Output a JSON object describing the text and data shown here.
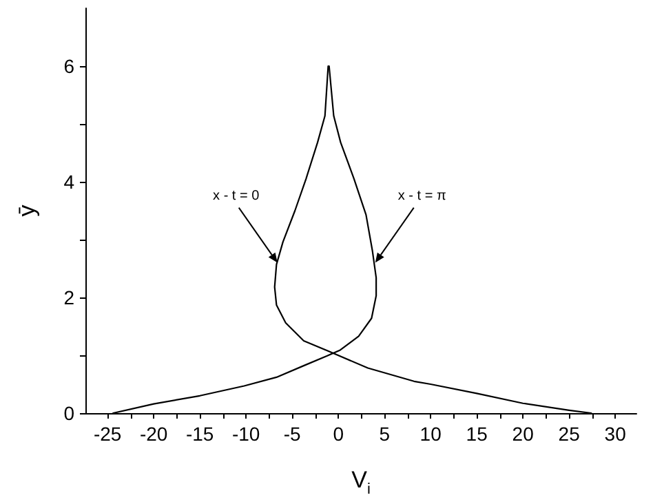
{
  "chart_data": {
    "type": "line",
    "xlabel": "V$_{i}$",
    "ylabel": "ȳ",
    "xlim": [
      -27.4,
      32.3
    ],
    "ylim": [
      0,
      7
    ],
    "xticks": [
      -25,
      {
        "value": -22.5,
        "label": null
      },
      -20,
      {
        "value": -17.5,
        "label": null
      },
      -15,
      {
        "value": -12.5,
        "label": null
      },
      -10,
      {
        "value": -7.5,
        "label": null
      },
      -5,
      {
        "value": -2.5,
        "label": null
      },
      0,
      {
        "value": 2.5,
        "label": null
      },
      5,
      {
        "value": 7.5,
        "label": null
      },
      10,
      {
        "value": 12.5,
        "label": null
      },
      15,
      {
        "value": 17.5,
        "label": null
      },
      20,
      {
        "value": 22.5,
        "label": null
      },
      25,
      {
        "value": 27.5,
        "label": null
      },
      30
    ],
    "yticks": [
      0,
      {
        "value": 1,
        "label": null
      },
      2,
      {
        "value": 3,
        "label": null
      },
      4,
      {
        "value": 5,
        "label": null
      },
      6
    ],
    "grid": false,
    "marker": "none",
    "line_style": "solid",
    "series": [
      {
        "color": "#000000",
        "x": [
          -1.1,
          -1.45,
          -2.25,
          -3.5,
          -4.7,
          -6.0,
          -6.7,
          -6.9,
          -6.7,
          -5.7,
          -3.75,
          -1.2,
          3.2,
          8.2,
          10,
          15,
          20,
          25,
          27.4
        ],
        "values": [
          6,
          5.14,
          4.68,
          4.05,
          3.5,
          2.96,
          2.57,
          2.18,
          1.87,
          1.56,
          1.25,
          1.08,
          0.78,
          0.55,
          0.5,
          0.34,
          0.17,
          0.05,
          0
        ]
      },
      {
        "color": "#000000",
        "x": [
          -1.0,
          -0.5,
          0.25,
          1.7,
          3.0,
          3.7,
          4.1,
          4.1,
          3.6,
          2.2,
          0.2,
          -1.2,
          -3.75,
          -6.7,
          -10.2,
          -15,
          -20,
          -24.4
        ],
        "values": [
          6,
          5.14,
          4.68,
          4.05,
          3.43,
          2.8,
          2.34,
          2.03,
          1.64,
          1.33,
          1.09,
          0.99,
          0.82,
          0.62,
          0.47,
          0.3,
          0.16,
          0
        ]
      }
    ],
    "annotations": [
      {
        "text": "x - t = 0",
        "x": -6.6,
        "y": 2.6
      },
      {
        "text": "x - t = π",
        "x": 4.0,
        "y": 2.6
      }
    ]
  }
}
